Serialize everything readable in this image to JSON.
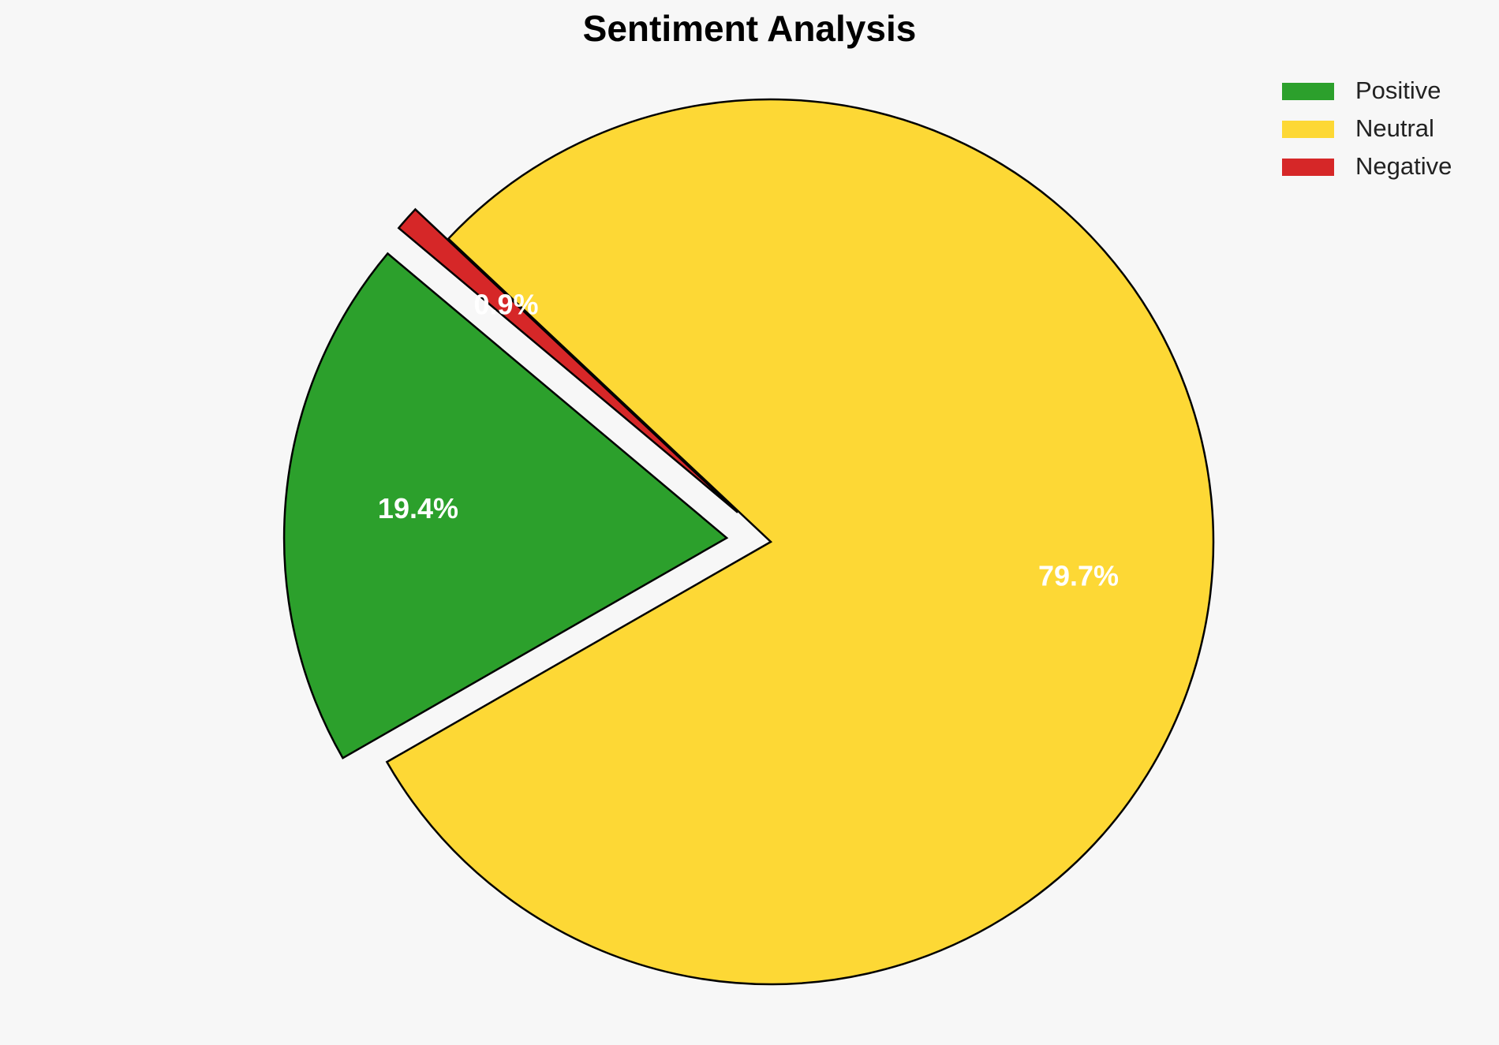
{
  "chart_data": {
    "type": "pie",
    "title": "Sentiment Analysis",
    "categories": [
      "Positive",
      "Neutral",
      "Negative"
    ],
    "values": [
      19.4,
      79.7,
      0.9
    ],
    "value_labels": [
      "19.4%",
      "79.7%",
      "0.9%"
    ],
    "colors": [
      "#2ca02c",
      "#fdd835",
      "#d62728"
    ],
    "explode": [
      0.1,
      0,
      0.1
    ],
    "startangle": 140,
    "legend": "upper right"
  }
}
